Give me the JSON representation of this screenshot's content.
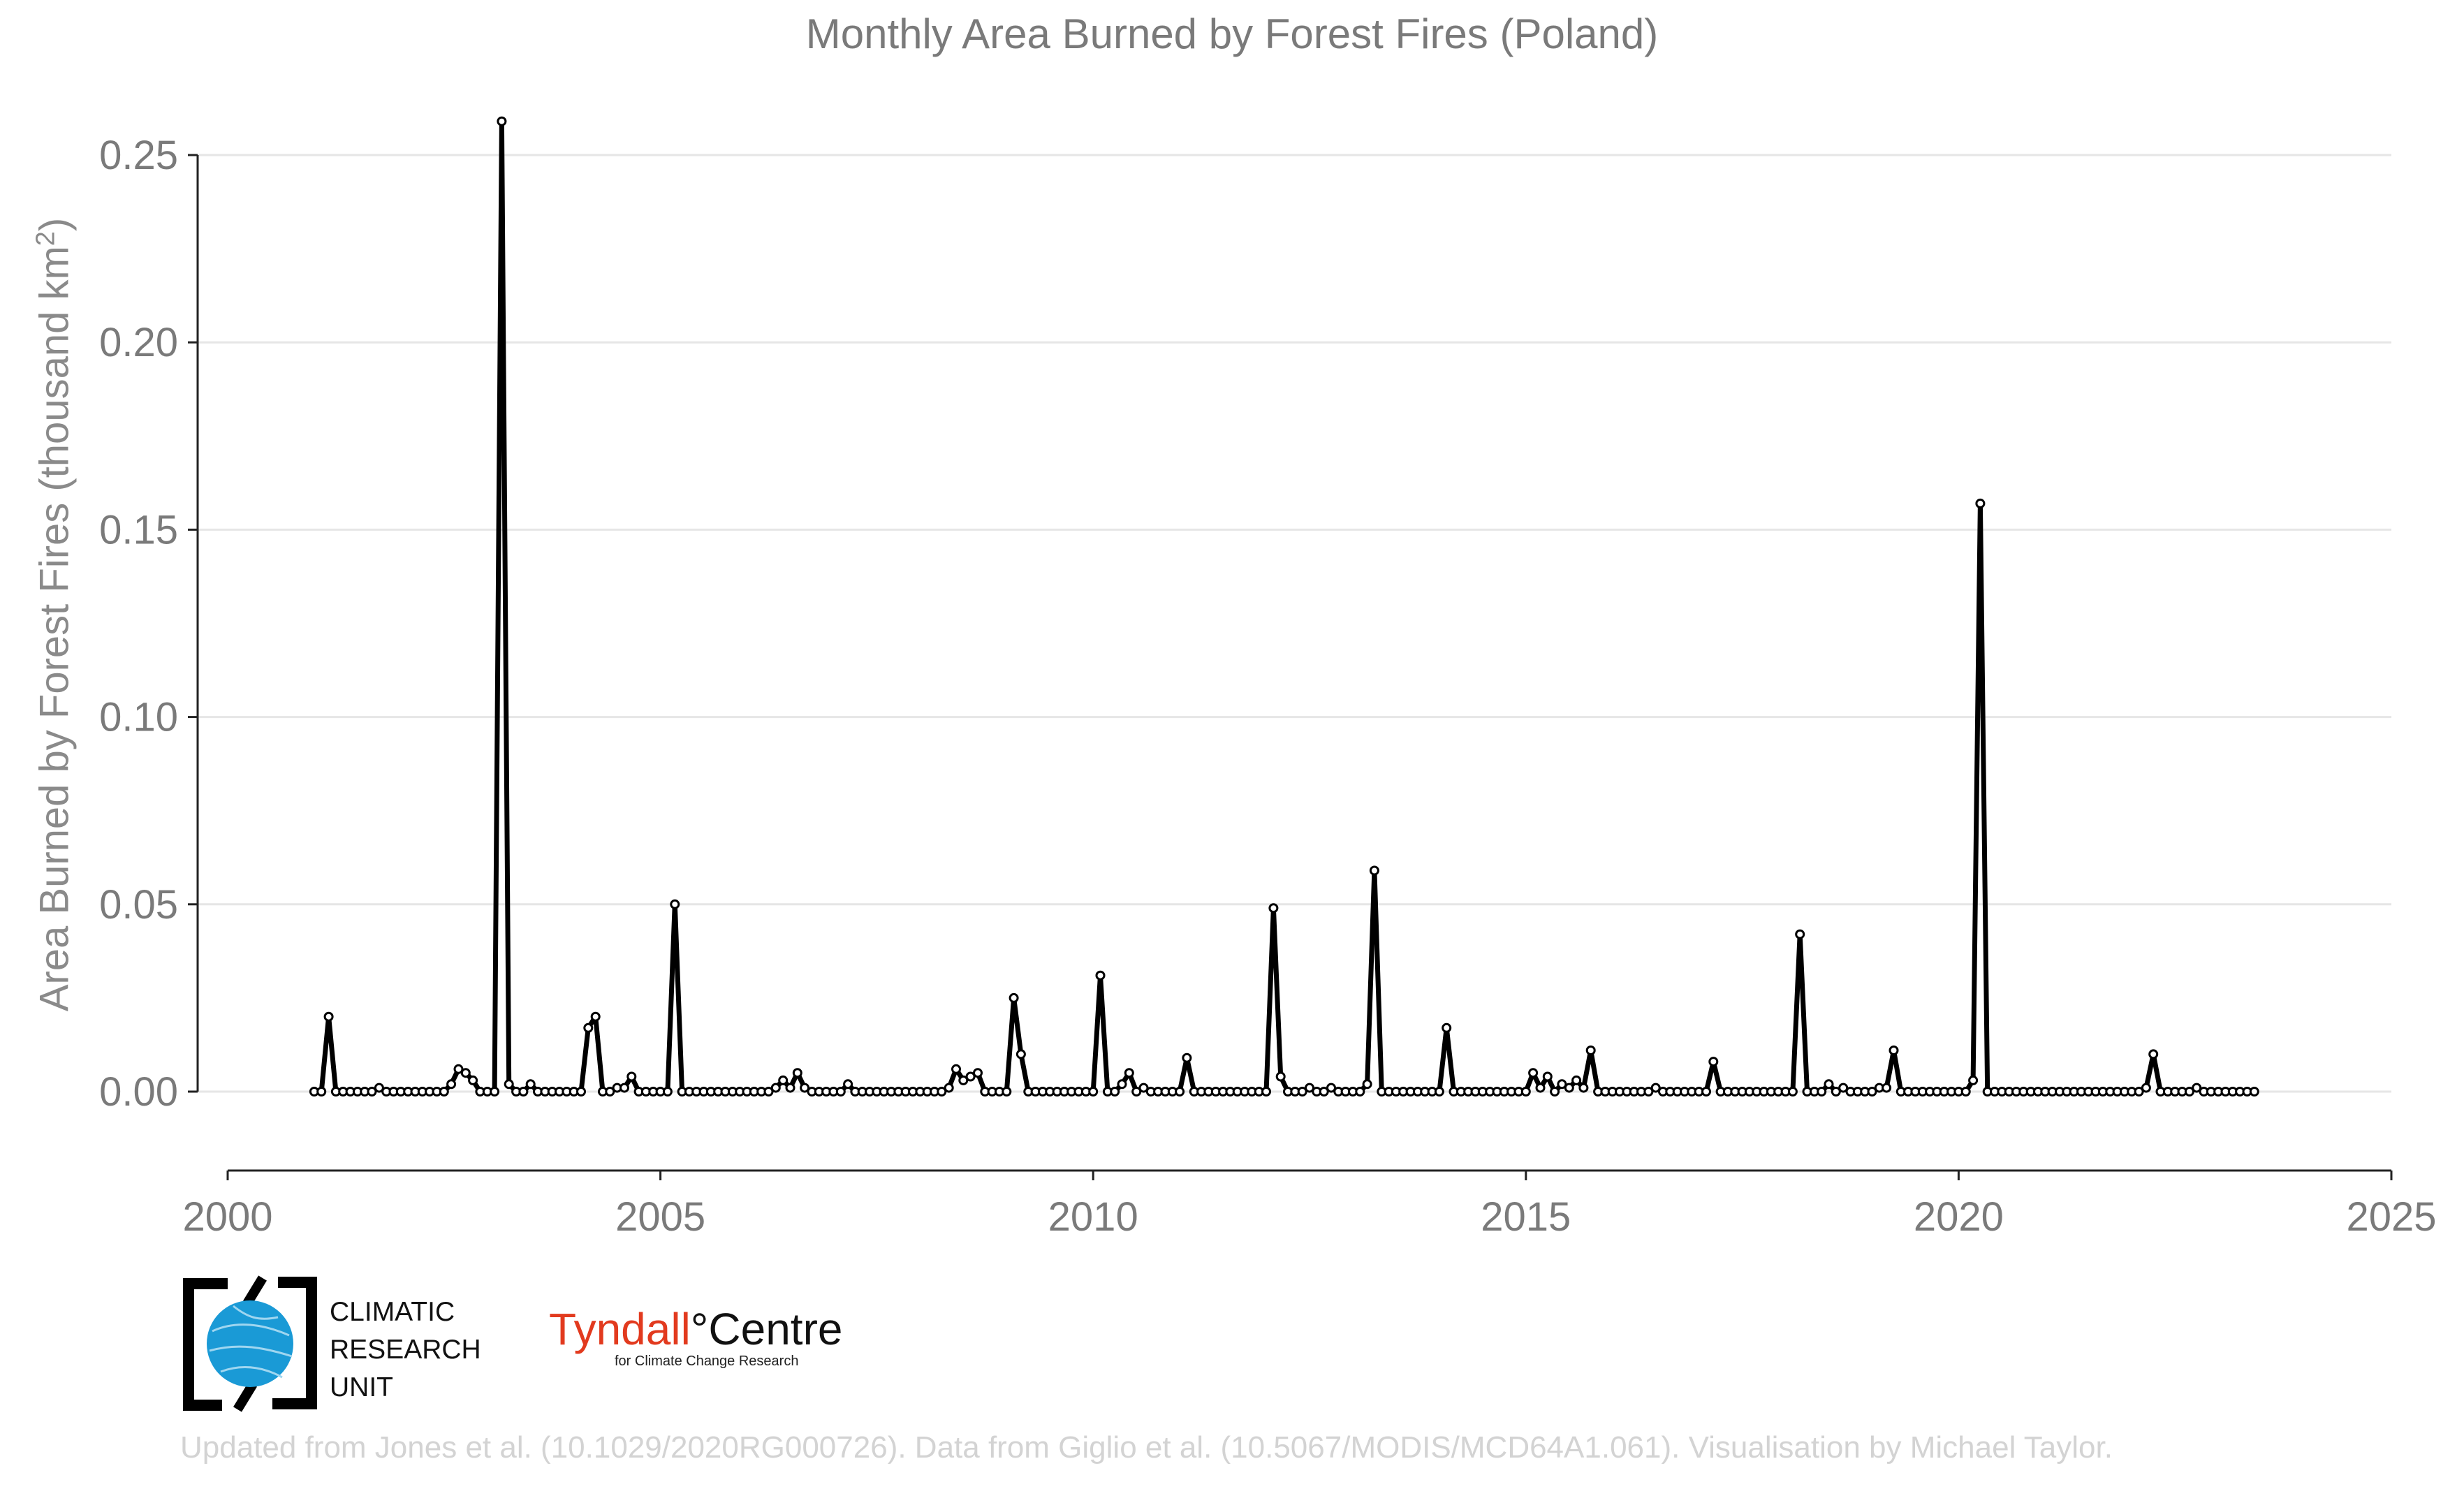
{
  "chart_data": {
    "type": "line",
    "title": "Monthly Area Burned by Forest Fires (Poland)",
    "ylabel_main": "Area Burned by Forest Fires (thousand km",
    "ylabel_sup": "2",
    "ylabel_end": ")",
    "xlabel": "",
    "xlim": [
      2000,
      2025
    ],
    "ylim": [
      -0.02,
      0.26
    ],
    "x_ticks": [
      2000,
      2005,
      2010,
      2015,
      2020,
      2025
    ],
    "x_tick_labels": [
      "2000",
      "2005",
      "2010",
      "2015",
      "2020",
      "2025"
    ],
    "y_ticks": [
      0,
      0.05,
      0.1,
      0.15,
      0.2,
      0.25
    ],
    "y_tick_labels": [
      "0.00",
      "0.05",
      "0.10",
      "0.15",
      "0.20",
      "0.25"
    ],
    "grid": "horizontal",
    "series": [
      {
        "name": "Monthly area burned",
        "start_year": 2001,
        "start_month": 1,
        "values": [
          0,
          0,
          0.02,
          0,
          0,
          0,
          0,
          0,
          0,
          0.001,
          0,
          0,
          0,
          0,
          0,
          0,
          0,
          0,
          0,
          0.002,
          0.006,
          0.005,
          0.003,
          0,
          0,
          0,
          0.259,
          0.002,
          0,
          0,
          0.002,
          0,
          0,
          0,
          0,
          0,
          0,
          0,
          0.017,
          0.02,
          0,
          0,
          0.001,
          0.001,
          0.004,
          0,
          0,
          0,
          0,
          0,
          0.05,
          0,
          0,
          0,
          0,
          0,
          0,
          0,
          0,
          0,
          0,
          0,
          0,
          0,
          0.001,
          0.003,
          0.001,
          0.005,
          0.001,
          0,
          0,
          0,
          0,
          0,
          0.002,
          0,
          0,
          0,
          0,
          0,
          0,
          0,
          0,
          0,
          0,
          0,
          0,
          0,
          0.001,
          0.006,
          0.003,
          0.004,
          0.005,
          0,
          0,
          0,
          0,
          0.025,
          0.01,
          0,
          0,
          0,
          0,
          0,
          0,
          0,
          0,
          0,
          0,
          0.031,
          0,
          0,
          0.002,
          0.005,
          0,
          0.001,
          0,
          0,
          0,
          0,
          0,
          0.009,
          0,
          0,
          0,
          0,
          0,
          0,
          0,
          0,
          0,
          0,
          0,
          0.049,
          0.004,
          0,
          0,
          0,
          0.001,
          0,
          0,
          0.001,
          0,
          0,
          0,
          0,
          0.002,
          0.059,
          0,
          0,
          0,
          0,
          0,
          0,
          0,
          0,
          0,
          0.017,
          0,
          0,
          0,
          0,
          0,
          0,
          0,
          0,
          0,
          0,
          0,
          0.005,
          0.001,
          0.004,
          0,
          0.002,
          0.001,
          0.003,
          0.001,
          0.011,
          0,
          0,
          0,
          0,
          0,
          0,
          0,
          0,
          0.001,
          0,
          0,
          0,
          0,
          0,
          0,
          0,
          0.008,
          0,
          0,
          0,
          0,
          0,
          0,
          0,
          0,
          0,
          0,
          0,
          0.042,
          0,
          0,
          0,
          0.002,
          0,
          0.001,
          0,
          0,
          0,
          0,
          0.001,
          0.001,
          0.011,
          0,
          0,
          0,
          0,
          0,
          0,
          0,
          0,
          0,
          0,
          0.003,
          0.157,
          0,
          0,
          0,
          0,
          0,
          0,
          0,
          0,
          0,
          0,
          0,
          0,
          0,
          0,
          0,
          0,
          0,
          0,
          0,
          0,
          0,
          0,
          0.001,
          0.01,
          0,
          0,
          0,
          0,
          0,
          0.001,
          0,
          0,
          0,
          0,
          0,
          0,
          0,
          0
        ]
      }
    ]
  },
  "caption": "Updated from Jones et al. (10.1029/2020RG000726). Data from Giglio et al. (10.5067/MODIS/MCD64A1.061). Visualisation by Michael Taylor.",
  "logos": {
    "cru": [
      "CLIMATIC",
      "RESEARCH",
      "UNIT"
    ],
    "tyndall_name": "Tyndall",
    "tyndall_degree": "°",
    "tyndall_centre": "Centre",
    "tyndall_sub": "for Climate Change Research"
  },
  "colors": {
    "line": "#000000",
    "marker_fill": "#ffffff",
    "grid": "#e6e6e6",
    "axis_text": "#7a7a7a",
    "logo_blue": "#1a9ad6",
    "tyndall_red": "#e23a1e"
  }
}
